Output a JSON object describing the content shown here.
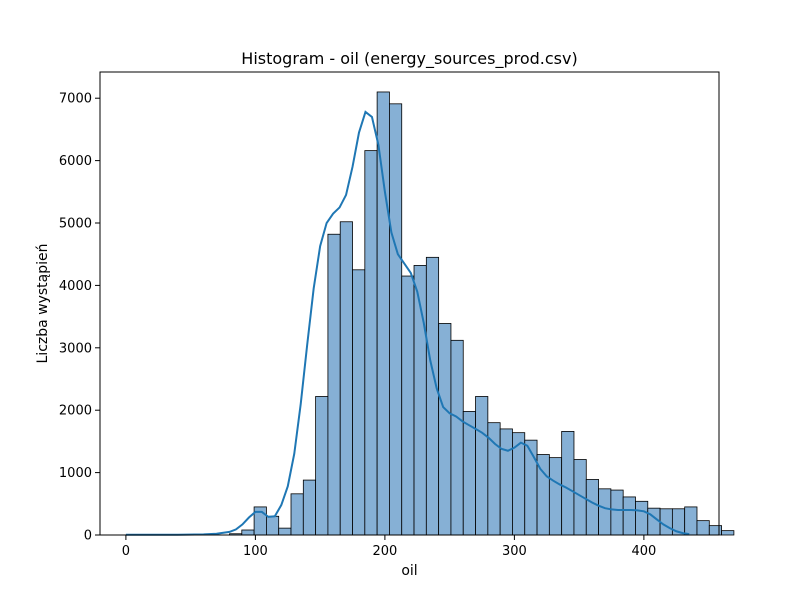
{
  "chart_data": {
    "type": "bar",
    "title": "Histogram - oil (energy_sources_prod.csv)",
    "xlabel": "oil",
    "ylabel": "Liczba wystąpień",
    "xlim": [
      -20,
      458
    ],
    "ylim": [
      0,
      7420
    ],
    "xticks": [
      0,
      100,
      200,
      300,
      400
    ],
    "yticks": [
      0,
      1000,
      2000,
      3000,
      4000,
      5000,
      6000,
      7000
    ],
    "grid": false,
    "bin_start": 80,
    "bin_width": 9.5,
    "counts": [
      20,
      80,
      450,
      300,
      110,
      660,
      880,
      2220,
      4820,
      5020,
      4250,
      6160,
      7100,
      6910,
      4150,
      4320,
      4450,
      3390,
      3120,
      1980,
      2220,
      1800,
      1700,
      1640,
      1520,
      1290,
      1240,
      1660,
      1210,
      890,
      740,
      720,
      610,
      540,
      430,
      420,
      420,
      450,
      230,
      150,
      70
    ],
    "kde": {
      "x": [
        0,
        20,
        40,
        60,
        70,
        80,
        85,
        90,
        95,
        100,
        105,
        110,
        115,
        120,
        125,
        130,
        135,
        140,
        145,
        150,
        155,
        160,
        165,
        170,
        175,
        180,
        185,
        190,
        195,
        200,
        205,
        210,
        215,
        220,
        225,
        230,
        235,
        240,
        245,
        250,
        255,
        260,
        265,
        270,
        275,
        280,
        285,
        290,
        295,
        300,
        305,
        310,
        315,
        320,
        325,
        330,
        335,
        340,
        345,
        350,
        355,
        360,
        365,
        370,
        375,
        380,
        385,
        390,
        395,
        400,
        405,
        410,
        415,
        420,
        425,
        430,
        435
      ],
      "y": [
        5,
        5,
        5,
        10,
        20,
        50,
        90,
        170,
        280,
        370,
        370,
        290,
        300,
        480,
        780,
        1300,
        2100,
        3050,
        3950,
        4630,
        5000,
        5150,
        5250,
        5450,
        5900,
        6450,
        6780,
        6700,
        6250,
        5500,
        4850,
        4500,
        4350,
        4200,
        3900,
        3400,
        2800,
        2350,
        2050,
        1950,
        1900,
        1820,
        1760,
        1700,
        1640,
        1560,
        1460,
        1380,
        1350,
        1400,
        1480,
        1430,
        1250,
        1060,
        940,
        870,
        810,
        760,
        700,
        640,
        580,
        520,
        470,
        430,
        410,
        400,
        400,
        400,
        395,
        380,
        330,
        250,
        170,
        110,
        60,
        30,
        15
      ]
    },
    "bar_color": "#86b0d5",
    "edge_color": "#000000",
    "kde_color": "#1f77b4"
  }
}
